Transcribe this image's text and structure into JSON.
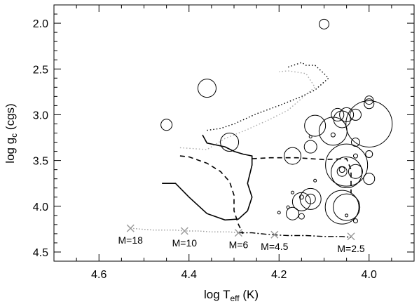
{
  "chart_data": {
    "type": "scatter",
    "title": "",
    "xlabel": "log T",
    "xlabel_sub": "eff",
    "xlabel_unit": " (K)",
    "ylabel": "log g",
    "ylabel_sub": "c",
    "ylabel_unit": " (cgs)",
    "xlim": [
      4.7,
      3.9
    ],
    "ylim": [
      4.6,
      1.8
    ],
    "x_reversed": true,
    "y_reversed": true,
    "x_ticks": [
      4.6,
      4.4,
      4.2,
      4.0
    ],
    "x_tick_labels": [
      "4.6",
      "4.4",
      "4.2",
      "4.0"
    ],
    "y_ticks": [
      2.0,
      2.5,
      3.0,
      3.5,
      4.0,
      4.5
    ],
    "y_tick_labels": [
      "2.0",
      "2.5",
      "3.0",
      "3.5",
      "4.0",
      "4.5"
    ],
    "grid": false,
    "colors": {
      "axis": "#000000",
      "circle": "#000000",
      "zams": "#999999",
      "mass_marker": "#999999",
      "gray_track": "#aaaaaa"
    },
    "points": [
      {
        "x": 4.36,
        "y": 2.71,
        "size": 13
      },
      {
        "x": 4.1,
        "y": 2.01,
        "size": 7
      },
      {
        "x": 4.45,
        "y": 3.11,
        "size": 8
      },
      {
        "x": 4.31,
        "y": 3.3,
        "size": 13
      },
      {
        "x": 4.17,
        "y": 3.45,
        "size": 12
      },
      {
        "x": 4.13,
        "y": 3.35,
        "size": 9
      },
      {
        "x": 4.12,
        "y": 3.12,
        "size": 15
      },
      {
        "x": 4.08,
        "y": 3.18,
        "size": 20
      },
      {
        "x": 4.07,
        "y": 3.0,
        "size": 9
      },
      {
        "x": 4.06,
        "y": 3.05,
        "size": 12
      },
      {
        "x": 4.05,
        "y": 3.0,
        "size": 10
      },
      {
        "x": 4.03,
        "y": 3.0,
        "size": 8
      },
      {
        "x": 4.0,
        "y": 3.1,
        "size": 33
      },
      {
        "x": 4.0,
        "y": 2.84,
        "size": 6
      },
      {
        "x": 4.0,
        "y": 2.88,
        "size": 7
      },
      {
        "x": 4.05,
        "y": 3.55,
        "size": 30
      },
      {
        "x": 4.05,
        "y": 3.63,
        "size": 22
      },
      {
        "x": 4.03,
        "y": 3.62,
        "size": 10
      },
      {
        "x": 4.06,
        "y": 3.62,
        "size": 7
      },
      {
        "x": 4.0,
        "y": 3.7,
        "size": 8
      },
      {
        "x": 4.03,
        "y": 3.3,
        "size": 6
      },
      {
        "x": 4.0,
        "y": 3.43,
        "size": 5
      },
      {
        "x": 4.15,
        "y": 3.95,
        "size": 13
      },
      {
        "x": 4.13,
        "y": 3.92,
        "size": 15
      },
      {
        "x": 4.13,
        "y": 3.92,
        "size": 7
      },
      {
        "x": 4.06,
        "y": 4.01,
        "size": 24
      },
      {
        "x": 4.05,
        "y": 4.01,
        "size": 19
      },
      {
        "x": 4.06,
        "y": 3.6,
        "size": 4
      },
      {
        "x": 4.08,
        "y": 3.22,
        "size": 3
      },
      {
        "x": 4.13,
        "y": 3.24,
        "size": 2
      },
      {
        "x": 4.18,
        "y": 4.01,
        "size": 2
      },
      {
        "x": 4.05,
        "y": 4.1,
        "size": 2
      },
      {
        "x": 4.15,
        "y": 4.11,
        "size": 4
      },
      {
        "x": 4.03,
        "y": 4.16,
        "size": 3
      },
      {
        "x": 4.17,
        "y": 3.85,
        "size": 2
      },
      {
        "x": 4.12,
        "y": 3.72,
        "size": 2
      },
      {
        "x": 4.03,
        "y": 3.45,
        "size": 3
      },
      {
        "x": 4.17,
        "y": 4.08,
        "size": 9
      },
      {
        "x": 4.15,
        "y": 3.9,
        "size": 3
      },
      {
        "x": 4.2,
        "y": 4.07,
        "size": 2
      }
    ],
    "tracks": [
      {
        "style": "solid",
        "points": [
          [
            4.46,
            3.75
          ],
          [
            4.43,
            3.75
          ],
          [
            4.4,
            3.9
          ],
          [
            4.36,
            4.08
          ],
          [
            4.32,
            4.15
          ],
          [
            4.29,
            4.14
          ],
          [
            4.27,
            4.05
          ],
          [
            4.26,
            3.9
          ],
          [
            4.27,
            3.75
          ],
          [
            4.26,
            3.55
          ],
          [
            4.26,
            3.45
          ],
          [
            4.28,
            3.43
          ],
          [
            4.3,
            3.4
          ],
          [
            4.32,
            3.35
          ],
          [
            4.36,
            3.31
          ],
          [
            4.37,
            3.22
          ]
        ]
      },
      {
        "style": "dashed",
        "points": [
          [
            4.42,
            3.45
          ],
          [
            4.4,
            3.46
          ],
          [
            4.36,
            3.53
          ],
          [
            4.33,
            3.62
          ],
          [
            4.31,
            3.73
          ],
          [
            4.3,
            3.88
          ],
          [
            4.3,
            4.05
          ],
          [
            4.29,
            4.2
          ],
          [
            4.28,
            4.3
          ]
        ]
      },
      {
        "style": "dashed",
        "points": [
          [
            4.26,
            3.48
          ],
          [
            4.22,
            3.47
          ],
          [
            4.16,
            3.47
          ],
          [
            4.1,
            3.49
          ],
          [
            4.05,
            3.48
          ],
          [
            4.04,
            3.6
          ],
          [
            4.04,
            3.7
          ],
          [
            4.04,
            3.86
          ]
        ]
      },
      {
        "style": "dotted",
        "points": [
          [
            4.36,
            3.17
          ],
          [
            4.33,
            3.15
          ],
          [
            4.3,
            3.1
          ],
          [
            4.25,
            2.99
          ],
          [
            4.2,
            2.9
          ],
          [
            4.15,
            2.8
          ],
          [
            4.12,
            2.73
          ],
          [
            4.09,
            2.6
          ],
          [
            4.1,
            2.55
          ],
          [
            4.12,
            2.46
          ],
          [
            4.14,
            2.46
          ],
          [
            4.15,
            2.43
          ],
          [
            4.18,
            2.48
          ]
        ]
      },
      {
        "style": "dotted-gray",
        "points": [
          [
            4.42,
            3.36
          ],
          [
            4.36,
            3.38
          ],
          [
            4.32,
            3.26
          ],
          [
            4.27,
            3.16
          ],
          [
            4.22,
            3.05
          ],
          [
            4.18,
            2.95
          ],
          [
            4.14,
            2.78
          ],
          [
            4.12,
            2.7
          ],
          [
            4.14,
            2.55
          ],
          [
            4.18,
            2.52
          ],
          [
            4.2,
            2.53
          ]
        ]
      },
      {
        "style": "dashdot",
        "points": [
          [
            4.29,
            4.29
          ],
          [
            4.26,
            4.29
          ],
          [
            4.22,
            4.31
          ],
          [
            4.18,
            4.32
          ],
          [
            4.14,
            4.32
          ],
          [
            4.1,
            4.33
          ],
          [
            4.06,
            4.33
          ],
          [
            4.04,
            4.34
          ]
        ]
      },
      {
        "style": "dotted-zams",
        "points": [
          [
            4.53,
            4.24
          ],
          [
            4.48,
            4.26
          ],
          [
            4.43,
            4.26
          ],
          [
            4.41,
            4.27
          ],
          [
            4.38,
            4.27
          ],
          [
            4.35,
            4.28
          ],
          [
            4.31,
            4.28
          ],
          [
            4.29,
            4.29
          ]
        ]
      }
    ],
    "mass_markers": [
      {
        "x": 4.53,
        "y": 4.24,
        "label": "M=18"
      },
      {
        "x": 4.41,
        "y": 4.27,
        "label": "M=10"
      },
      {
        "x": 4.29,
        "y": 4.29,
        "label": "M=6"
      },
      {
        "x": 4.21,
        "y": 4.31,
        "label": "M=4.5"
      },
      {
        "x": 4.04,
        "y": 4.33,
        "label": "M=2.5"
      }
    ]
  }
}
